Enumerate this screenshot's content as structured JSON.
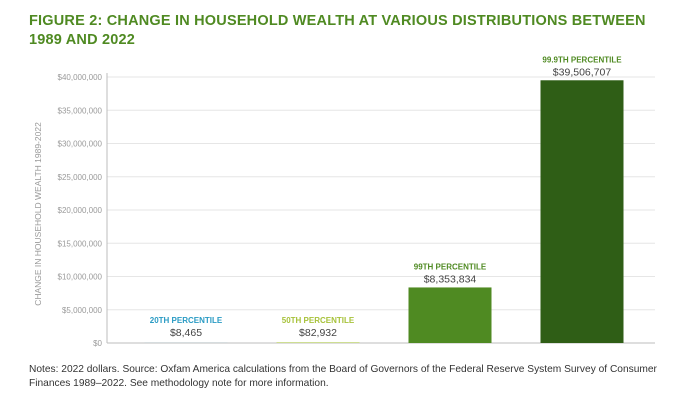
{
  "chart_data": {
    "type": "bar",
    "title": "FIGURE 2: CHANGE IN HOUSEHOLD WEALTH AT VARIOUS DISTRIBUTIONS BETWEEN 1989 AND 2022",
    "ylabel": "CHANGE IN HOUSEHOLD WEALTH 1989-2022",
    "xlabel": "",
    "ylim": [
      0,
      40000000
    ],
    "y_ticks": [
      {
        "value": 0,
        "label": "$0"
      },
      {
        "value": 5000000,
        "label": "$5,000,000"
      },
      {
        "value": 10000000,
        "label": "$10,000,000"
      },
      {
        "value": 15000000,
        "label": "$15,000,000"
      },
      {
        "value": 20000000,
        "label": "$20,000,000"
      },
      {
        "value": 25000000,
        "label": "$25,000,000"
      },
      {
        "value": 30000000,
        "label": "$30,000,000"
      },
      {
        "value": 35000000,
        "label": "$35,000,000"
      },
      {
        "value": 40000000,
        "label": "$40,000,000"
      }
    ],
    "categories": [
      "20TH PERCENTILE",
      "50TH PERCENTILE",
      "99TH PERCENTILE",
      "99.9TH PERCENTILE"
    ],
    "values": [
      8465,
      82932,
      8353834,
      39506707
    ],
    "value_labels": [
      "$8,465",
      "$82,932",
      "$8,353,834",
      "$39,506,707"
    ],
    "colors": [
      "#2a9bc4",
      "#a7c23a",
      "#4f8a22",
      "#2f5e16"
    ],
    "grid": true
  },
  "notes": "Notes: 2022 dollars. Source: Oxfam America calculations from the Board of Governors of the Federal Reserve System Survey of Consumer Finances 1989–2022. See methodology note for more information."
}
